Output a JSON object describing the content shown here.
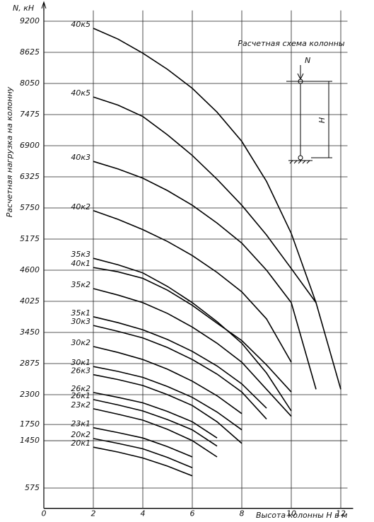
{
  "chart_data": {
    "type": "line",
    "y_title": "N, кН",
    "y_label": "Расчетная нагрузка на колонну",
    "x_label": "Высота колонны  H в м",
    "inset": {
      "title": "Расчетная схема колонны",
      "force_label": "N",
      "height_label": "H"
    },
    "x": [
      2,
      3,
      4,
      5,
      6,
      7,
      8,
      9,
      10,
      11,
      12
    ],
    "xlim": [
      0,
      12.5
    ],
    "xticks": [
      0,
      2,
      4,
      6,
      8,
      10,
      12
    ],
    "ylim": [
      200,
      9400
    ],
    "yticks": [
      9200,
      8625,
      8050,
      7475,
      6900,
      6325,
      5750,
      5175,
      4600,
      4025,
      3450,
      2875,
      2300,
      1750,
      1450,
      575
    ],
    "grid": true,
    "series": [
      {
        "name": "40к5",
        "color": "#000000",
        "values": [
          9070,
          8870,
          8610,
          8310,
          7960,
          7520,
          6980,
          6240,
          5280,
          4000,
          2400
        ]
      },
      {
        "name": "40к5",
        "color": "#000000",
        "values": [
          7800,
          7650,
          7440,
          7100,
          6720,
          6280,
          5800,
          5250,
          4630,
          4000,
          null
        ]
      },
      {
        "name": "40к3",
        "color": "#000000",
        "values": [
          6610,
          6470,
          6300,
          6070,
          5800,
          5470,
          5100,
          4600,
          4000,
          2400,
          null
        ]
      },
      {
        "name": "40к2",
        "color": "#000000",
        "values": [
          5700,
          5540,
          5350,
          5130,
          4870,
          4560,
          4200,
          3700,
          2900,
          null,
          null
        ]
      },
      {
        "name": "35к3",
        "color": "#000000",
        "values": [
          4820,
          4700,
          4550,
          4300,
          4000,
          3650,
          3250,
          2700,
          2000,
          null,
          null
        ]
      },
      {
        "name": "40к1",
        "color": "#000000",
        "values": [
          4650,
          4570,
          4450,
          4230,
          3950,
          3620,
          3300,
          2850,
          2350,
          null,
          null
        ]
      },
      {
        "name": "35к2",
        "color": "#000000",
        "values": [
          4260,
          4140,
          4000,
          3800,
          3550,
          3250,
          2900,
          2400,
          1900,
          null,
          null
        ]
      },
      {
        "name": "35к1",
        "color": "#000000",
        "values": [
          3740,
          3630,
          3500,
          3320,
          3100,
          2830,
          2500,
          2050,
          null,
          null,
          null
        ]
      },
      {
        "name": "30к3",
        "color": "#000000",
        "values": [
          3580,
          3470,
          3350,
          3170,
          2950,
          2680,
          2350,
          1850,
          null,
          null,
          null
        ]
      },
      {
        "name": "30к2",
        "color": "#000000",
        "values": [
          3190,
          3080,
          2950,
          2770,
          2550,
          2280,
          1950,
          null,
          null,
          null,
          null
        ]
      },
      {
        "name": "30к1",
        "color": "#000000",
        "values": [
          2820,
          2730,
          2620,
          2450,
          2250,
          1980,
          1650,
          null,
          null,
          null,
          null
        ]
      },
      {
        "name": "26к3",
        "color": "#000000",
        "values": [
          2670,
          2580,
          2470,
          2300,
          2100,
          1800,
          1400,
          null,
          null,
          null,
          null
        ]
      },
      {
        "name": "26к2",
        "color": "#000000",
        "values": [
          2340,
          2250,
          2150,
          1990,
          1800,
          1500,
          null,
          null,
          null,
          null,
          null
        ]
      },
      {
        "name": "26к1",
        "color": "#000000",
        "values": [
          2210,
          2110,
          2000,
          1840,
          1650,
          1350,
          null,
          null,
          null,
          null,
          null
        ]
      },
      {
        "name": "23к2",
        "color": "#000000",
        "values": [
          2040,
          1940,
          1830,
          1660,
          1450,
          1150,
          null,
          null,
          null,
          null,
          null
        ]
      },
      {
        "name": "23к1",
        "color": "#000000",
        "values": [
          1690,
          1600,
          1500,
          1340,
          1150,
          null,
          null,
          null,
          null,
          null,
          null
        ]
      },
      {
        "name": "20к2",
        "color": "#000000",
        "values": [
          1490,
          1400,
          1300,
          1140,
          950,
          null,
          null,
          null,
          null,
          null,
          null
        ]
      },
      {
        "name": "20к1",
        "color": "#000000",
        "values": [
          1330,
          1240,
          1130,
          980,
          800,
          null,
          null,
          null,
          null,
          null,
          null
        ]
      }
    ]
  }
}
